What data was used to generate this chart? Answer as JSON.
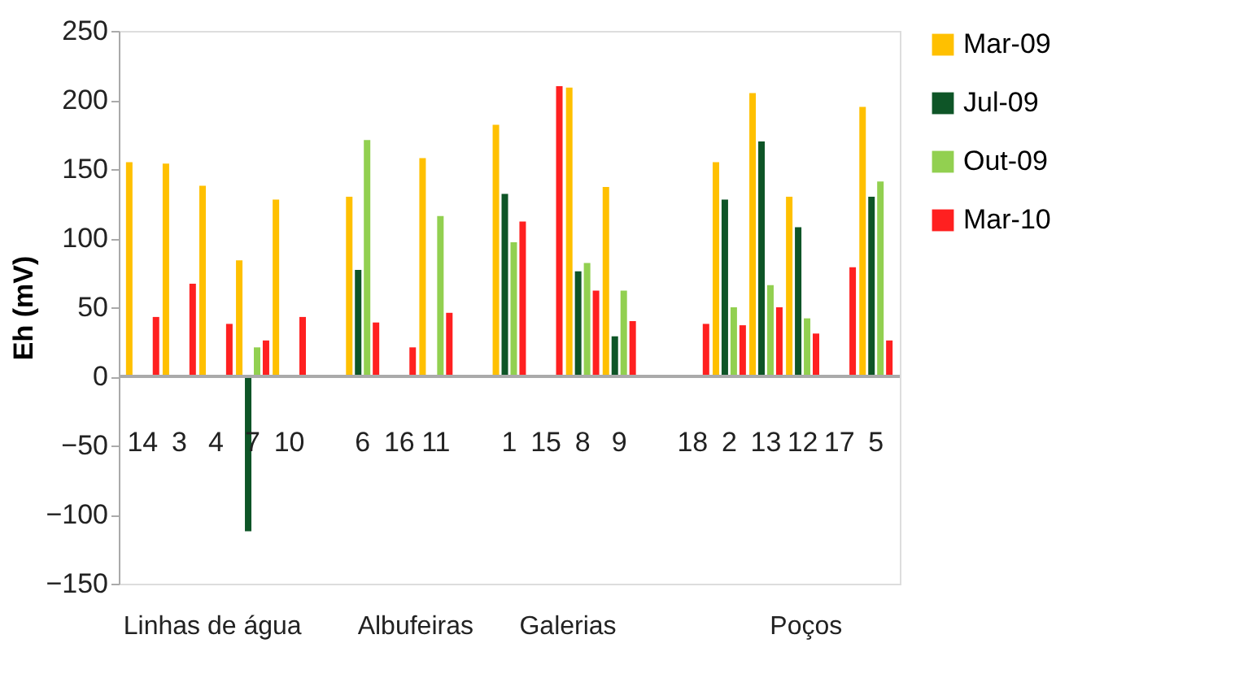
{
  "chart_data": {
    "type": "bar",
    "ylabel": "Eh (mV)",
    "categories": [
      "14",
      "3",
      "4",
      "7",
      "10",
      null,
      "6",
      "16",
      "11",
      null,
      "1",
      "15",
      "8",
      "9",
      null,
      "18",
      "2",
      "13",
      "12",
      "17",
      "5"
    ],
    "series": [
      {
        "name": "Mar-09",
        "color": "#ffc000",
        "values": [
          155,
          154,
          138,
          84,
          128,
          null,
          130,
          null,
          158,
          null,
          182,
          null,
          209,
          137,
          null,
          null,
          155,
          205,
          130,
          null,
          195
        ]
      },
      {
        "name": "Jul-09",
        "color": "#0e5527",
        "values": [
          null,
          null,
          null,
          -112,
          null,
          null,
          77,
          null,
          null,
          null,
          132,
          null,
          76,
          29,
          null,
          null,
          128,
          170,
          108,
          null,
          130
        ]
      },
      {
        "name": "Out-09",
        "color": "#92d050",
        "values": [
          null,
          null,
          null,
          21,
          null,
          null,
          171,
          null,
          116,
          null,
          97,
          null,
          82,
          62,
          null,
          null,
          50,
          66,
          42,
          null,
          141
        ]
      },
      {
        "name": "Mar-10",
        "color": "#ff2020",
        "values": [
          43,
          67,
          38,
          26,
          43,
          null,
          39,
          21,
          46,
          null,
          112,
          210,
          62,
          40,
          null,
          38,
          37,
          50,
          31,
          79,
          26
        ]
      }
    ],
    "ylim": [
      -150,
      250
    ],
    "yticks": [
      -150,
      -100,
      -50,
      0,
      50,
      100,
      150,
      200,
      250
    ],
    "grid": false,
    "legend": "right",
    "annotations": [
      "Linhas de água",
      "Albufeiras",
      "Galerias",
      "Poços"
    ]
  }
}
